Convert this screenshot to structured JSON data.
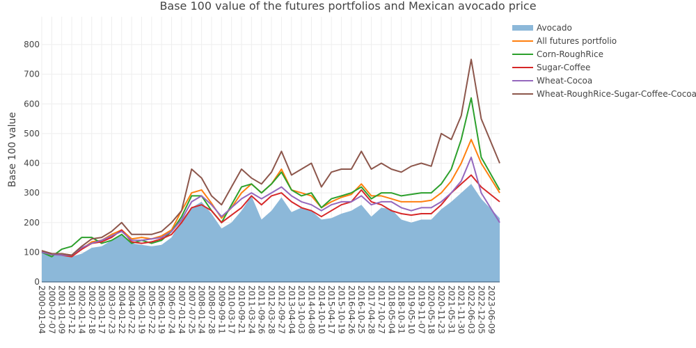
{
  "chart_data": {
    "type": "line",
    "title": "Base 100 value of the futures portfolios and Mexican avocado price",
    "xlabel": "",
    "ylabel": "Base 100 value",
    "ylim": [
      0,
      900
    ],
    "yticks": [
      0,
      100,
      200,
      300,
      400,
      500,
      600,
      700,
      800
    ],
    "grid": true,
    "legend_position": "top-right outside",
    "categories": [
      "2000-01-04",
      "2000-07-07",
      "2001-01-09",
      "2001-07-12",
      "2002-01-14",
      "2002-07-18",
      "2003-01-17",
      "2003-07-23",
      "2004-01-22",
      "2004-07-22",
      "2005-01-19",
      "2005-07-22",
      "2006-01-19",
      "2006-07-24",
      "2007-01-24",
      "2007-07-25",
      "2008-01-24",
      "2008-07-28",
      "2009-09-11",
      "2010-03-17",
      "2010-09-21",
      "2011-03-24",
      "2011-09-26",
      "2012-03-28",
      "2012-09-27",
      "2013-04-04",
      "2013-10-03",
      "2014-04-08",
      "2014-10-10",
      "2015-04-17",
      "2015-10-19",
      "2016-04-26",
      "2016-10-25",
      "2017-04-28",
      "2017-10-27",
      "2018-05-04",
      "2018-10-31",
      "2019-05-10",
      "2019-11-07",
      "2020-05-18",
      "2020-11-23",
      "2021-05-31",
      "2021-11-30",
      "2022-06-03",
      "2022-12-05",
      "2023-06-09"
    ],
    "series": [
      {
        "name": "Avocado",
        "kind": "area",
        "color": "#8cb8d9",
        "values": [
          100,
          90,
          90,
          85,
          95,
          115,
          120,
          140,
          160,
          130,
          125,
          120,
          125,
          150,
          210,
          250,
          270,
          230,
          180,
          200,
          240,
          290,
          210,
          240,
          285,
          235,
          250,
          240,
          210,
          215,
          230,
          240,
          260,
          220,
          250,
          245,
          210,
          200,
          210,
          210,
          245,
          270,
          300,
          330,
          280,
          215
        ]
      },
      {
        "name": "All futures portfolio",
        "kind": "line",
        "color": "#ff7f0e",
        "values": [
          100,
          92,
          95,
          90,
          110,
          135,
          140,
          160,
          175,
          145,
          150,
          145,
          155,
          175,
          240,
          300,
          310,
          265,
          215,
          250,
          300,
          330,
          300,
          330,
          380,
          310,
          300,
          290,
          250,
          270,
          285,
          295,
          330,
          290,
          290,
          280,
          270,
          270,
          270,
          275,
          300,
          340,
          400,
          480,
          400,
          300
        ]
      },
      {
        "name": "Corn-RoughRice",
        "kind": "line",
        "color": "#2ca02c",
        "values": [
          100,
          85,
          110,
          120,
          150,
          150,
          130,
          140,
          160,
          130,
          140,
          130,
          140,
          170,
          220,
          290,
          290,
          240,
          200,
          260,
          320,
          330,
          300,
          330,
          370,
          310,
          290,
          300,
          250,
          280,
          290,
          300,
          320,
          280,
          300,
          300,
          290,
          295,
          300,
          300,
          330,
          380,
          480,
          620,
          420,
          310
        ]
      },
      {
        "name": "Sugar-Coffee",
        "kind": "line",
        "color": "#d62728",
        "values": [
          105,
          95,
          90,
          85,
          110,
          130,
          135,
          150,
          175,
          135,
          130,
          135,
          145,
          160,
          200,
          250,
          260,
          240,
          200,
          225,
          250,
          290,
          260,
          290,
          300,
          270,
          250,
          240,
          220,
          240,
          260,
          270,
          310,
          270,
          260,
          240,
          230,
          225,
          230,
          230,
          260,
          300,
          330,
          360,
          320,
          270
        ]
      },
      {
        "name": "Wheat-Cocoa",
        "kind": "line",
        "color": "#9467bd",
        "values": [
          100,
          92,
          90,
          90,
          115,
          130,
          140,
          155,
          170,
          140,
          140,
          145,
          150,
          170,
          210,
          270,
          290,
          260,
          220,
          250,
          280,
          300,
          280,
          300,
          320,
          290,
          270,
          260,
          240,
          260,
          270,
          270,
          290,
          260,
          270,
          270,
          250,
          240,
          250,
          250,
          270,
          300,
          340,
          420,
          300,
          200
        ]
      },
      {
        "name": "Wheat-RoughRice-Sugar-Coffee-Cocoa",
        "kind": "line",
        "color": "#8c564b",
        "values": [
          105,
          95,
          95,
          90,
          120,
          145,
          150,
          170,
          200,
          160,
          160,
          160,
          170,
          200,
          240,
          380,
          350,
          290,
          260,
          320,
          380,
          350,
          330,
          370,
          440,
          360,
          380,
          400,
          320,
          370,
          380,
          380,
          440,
          380,
          400,
          380,
          370,
          390,
          400,
          390,
          500,
          480,
          560,
          750,
          550,
          400
        ]
      }
    ]
  }
}
